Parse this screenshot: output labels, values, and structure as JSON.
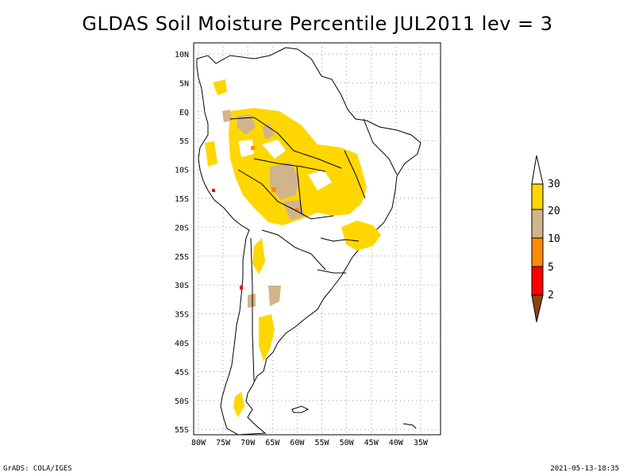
{
  "title": "GLDAS Soil Moisture Percentile JUL2011 lev = 3",
  "footer": {
    "left": "GrADS: COLA/IGES",
    "right": "2021-05-13-18:35"
  },
  "map": {
    "lon_ticks": [
      "80W",
      "75W",
      "70W",
      "65W",
      "60W",
      "55W",
      "50W",
      "45W",
      "40W",
      "35W"
    ],
    "lat_ticks": [
      "10N",
      "5N",
      "EQ",
      "5S",
      "10S",
      "15S",
      "20S",
      "25S",
      "30S",
      "35S",
      "40S",
      "45S",
      "50S",
      "55S"
    ],
    "lon_range": [
      -81,
      -32
    ],
    "lat_range": [
      12,
      -56
    ],
    "grid": true
  },
  "colorbar": {
    "labels": [
      "2",
      "5",
      "10",
      "20",
      "30"
    ],
    "colors": [
      "#8b4513",
      "#ff0000",
      "#ff8c00",
      "#d2b48c",
      "#ffd700",
      "#ffffff"
    ]
  }
}
